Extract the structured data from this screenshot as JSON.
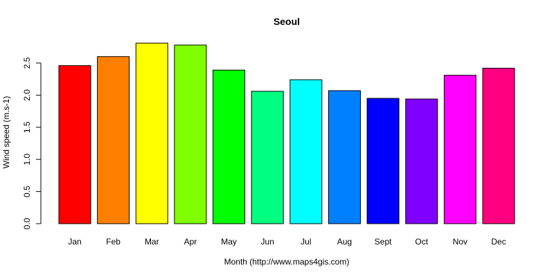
{
  "chart_data": {
    "type": "bar",
    "title": "Seoul",
    "xlabel": "Month (http://www.maps4gis.com)",
    "ylabel": "Wind speed (m.s-1)",
    "categories": [
      "Jan",
      "Feb",
      "Mar",
      "Apr",
      "May",
      "Jun",
      "Jul",
      "Aug",
      "Sept",
      "Oct",
      "Nov",
      "Dec"
    ],
    "values": [
      2.46,
      2.6,
      2.81,
      2.78,
      2.39,
      2.06,
      2.24,
      2.07,
      1.95,
      1.94,
      2.31,
      2.42
    ],
    "colors": [
      "#FF0000",
      "#FF8000",
      "#FFFF00",
      "#80FF00",
      "#00FF00",
      "#00FF80",
      "#00FFFF",
      "#0080FF",
      "#0000FF",
      "#8000FF",
      "#FF00FF",
      "#FF0080"
    ],
    "yticks": [
      "0.0",
      "0.5",
      "1.0",
      "1.5",
      "2.0",
      "2.5"
    ],
    "ylim": [
      0,
      2.85
    ],
    "grid": false,
    "legend": "none"
  }
}
